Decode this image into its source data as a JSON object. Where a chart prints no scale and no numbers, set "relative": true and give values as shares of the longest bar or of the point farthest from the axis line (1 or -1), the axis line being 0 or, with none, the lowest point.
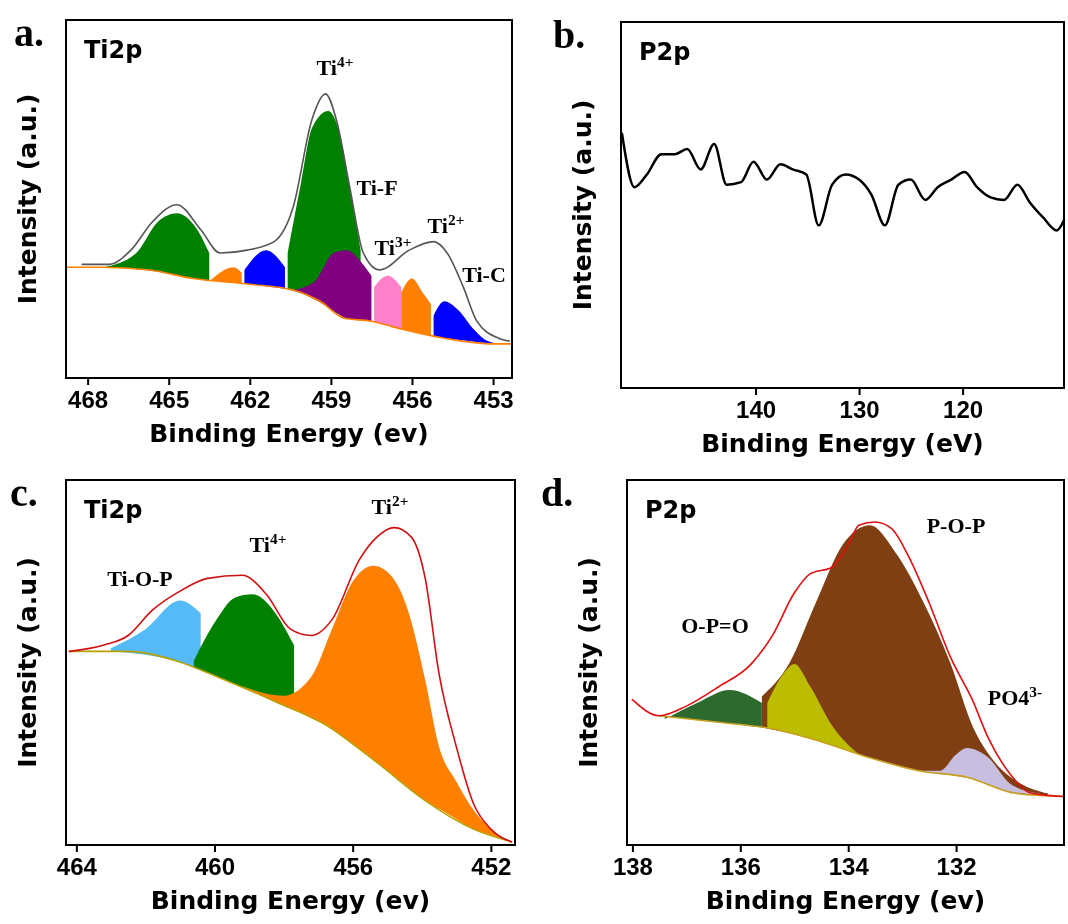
{
  "chart_data": [
    {
      "type": "area",
      "title": "a.",
      "subtitle": "Ti2p",
      "xlabel": "Binding Energy (ev)",
      "ylabel": "Intensity (a.u.)",
      "relative": true,
      "tick_labels": "x",
      "xlim": [
        468.8,
        452.3
      ],
      "xticks": [
        468,
        465,
        462,
        459,
        456,
        453
      ],
      "annotations": [
        "Ti$^{4+}$",
        "Ti-F",
        "Ti$^{3+}$",
        "Ti$^{2+}$",
        "Ti-C"
      ],
      "series": [
        {
          "color": "#008000",
          "x": [
            467.4,
            466.2,
            465.4,
            464.7,
            464.0,
            463.5
          ],
          "values": [
            0.39,
            0.44,
            0.55,
            0.58,
            0.53,
            0.44
          ]
        },
        {
          "color": "#ff8000",
          "x": [
            463.5,
            462.6,
            462.3
          ],
          "values": [
            0.34,
            0.39,
            0.37
          ]
        },
        {
          "color": "#008000",
          "x": [
            460.6,
            460.1,
            459.7,
            459.1,
            458.7,
            458.3,
            457.9
          ],
          "values": [
            0.44,
            0.69,
            0.88,
            0.94,
            0.87,
            0.67,
            0.45
          ]
        },
        {
          "color": "#0000ff",
          "x": [
            462.2,
            461.4,
            460.7
          ],
          "values": [
            0.38,
            0.45,
            0.39
          ]
        },
        {
          "color": "#800080",
          "x": [
            460.4,
            459.6,
            458.9,
            458.4,
            457.9,
            457.5
          ],
          "values": [
            0.31,
            0.34,
            0.44,
            0.45,
            0.41,
            0.36
          ]
        },
        {
          "color": "#ff80c8",
          "x": [
            457.4,
            456.9,
            456.4
          ],
          "values": [
            0.32,
            0.36,
            0.32
          ]
        },
        {
          "color": "#ff8000",
          "x": [
            456.4,
            456.0,
            455.6,
            455.3
          ],
          "values": [
            0.3,
            0.35,
            0.3,
            0.26
          ]
        },
        {
          "color": "#0000ff",
          "x": [
            455.2,
            454.8,
            454.3,
            453.7,
            453.2,
            452.7
          ],
          "values": [
            0.22,
            0.27,
            0.24,
            0.17,
            0.13,
            0.12
          ]
        },
        {
          "type": "line",
          "color": "#ff7f00",
          "x": [
            468.8,
            467.5,
            465.7,
            464.1,
            462.0,
            460.4,
            459.4,
            458.5,
            457.5,
            456.7,
            454.8,
            453.0,
            452.3
          ],
          "values": [
            0.39,
            0.39,
            0.38,
            0.35,
            0.33,
            0.31,
            0.27,
            0.21,
            0.2,
            0.18,
            0.14,
            0.12,
            0.12
          ]
        },
        {
          "type": "line",
          "color": "#555555",
          "x": [
            468.2,
            467.2,
            466.4,
            465.6,
            464.7,
            463.8,
            463.1,
            462.1,
            461.1,
            460.4,
            459.7,
            459.2,
            458.8,
            458.3,
            457.8,
            457.2,
            456.1,
            455.2,
            454.7,
            454.1,
            453.6,
            452.8,
            452.4
          ],
          "values": [
            0.4,
            0.4,
            0.45,
            0.55,
            0.61,
            0.52,
            0.44,
            0.45,
            0.48,
            0.6,
            0.91,
            1.0,
            0.91,
            0.67,
            0.44,
            0.38,
            0.45,
            0.48,
            0.44,
            0.32,
            0.2,
            0.14,
            0.13
          ]
        }
      ]
    },
    {
      "type": "line",
      "title": "b.",
      "subtitle": "P2p",
      "xlabel": "Binding Energy (eV)",
      "ylabel": "Intensity (a.u.)",
      "relative": true,
      "tick_labels": "x",
      "xlim": [
        153,
        110.2
      ],
      "xticks": [
        140,
        130,
        120
      ],
      "series": [
        {
          "color": "#000000",
          "x": [
            152.9,
            151.7,
            150.5,
            149.1,
            147.8,
            146.6,
            145.3,
            144.0,
            142.8,
            141.4,
            140.2,
            138.9,
            137.6,
            136.4,
            135.1,
            133.9,
            132.6,
            131.3,
            130.0,
            128.8,
            127.5,
            126.2,
            125.0,
            123.6,
            122.4,
            121.1,
            119.8,
            118.6,
            117.3,
            116.0,
            114.7,
            113.5,
            112.2,
            110.9,
            110.2
          ],
          "values": [
            1.0,
            0.79,
            0.84,
            0.92,
            0.92,
            0.94,
            0.86,
            0.96,
            0.8,
            0.81,
            0.89,
            0.82,
            0.88,
            0.86,
            0.84,
            0.64,
            0.8,
            0.84,
            0.82,
            0.76,
            0.64,
            0.8,
            0.82,
            0.74,
            0.79,
            0.82,
            0.85,
            0.79,
            0.75,
            0.74,
            0.8,
            0.73,
            0.67,
            0.62,
            0.66
          ]
        }
      ]
    },
    {
      "type": "area",
      "title": "c.",
      "subtitle": "Ti2p",
      "xlabel": "Binding Energy (ev)",
      "ylabel": "Intensity (a.u.)",
      "relative": true,
      "tick_labels": "x",
      "xlim": [
        464.3,
        451.3
      ],
      "xticks": [
        464,
        460,
        456,
        452
      ],
      "annotations": [
        "Ti-O-P",
        "Ti$^{4+}$",
        "Ti$^{2+}$"
      ],
      "series": [
        {
          "color": "#55bbf8",
          "x": [
            463.0,
            462.0,
            461.0,
            460.4
          ],
          "values": [
            0.62,
            0.68,
            0.77,
            0.73
          ]
        },
        {
          "color": "#008000",
          "x": [
            460.6,
            460.0,
            459.4,
            458.9,
            458.3,
            457.7
          ],
          "values": [
            0.58,
            0.7,
            0.78,
            0.79,
            0.74,
            0.63
          ]
        },
        {
          "color": "#ff8000",
          "x": [
            459.2,
            458.0,
            457.2,
            456.6,
            456.0,
            455.4,
            454.9,
            454.4,
            453.9,
            453.5,
            453.0,
            452.5,
            452.0,
            451.4
          ],
          "values": [
            0.5,
            0.47,
            0.53,
            0.68,
            0.83,
            0.88,
            0.85,
            0.74,
            0.52,
            0.31,
            0.2,
            0.11,
            0.05,
            0.01
          ]
        },
        {
          "type": "line",
          "color": "#b8a000",
          "x": [
            464.2,
            462.5,
            461.1,
            459.7,
            458.2,
            456.8,
            455.3,
            453.9,
            452.5,
            451.4
          ],
          "values": [
            0.61,
            0.61,
            0.58,
            0.52,
            0.45,
            0.38,
            0.26,
            0.14,
            0.05,
            0.01
          ]
        },
        {
          "type": "line",
          "color": "#d01010",
          "x": [
            464.2,
            463.2,
            462.5,
            461.8,
            461.0,
            460.2,
            459.2,
            458.5,
            457.8,
            457.2,
            456.6,
            455.8,
            455.3,
            454.8,
            454.3,
            453.9,
            453.5,
            453.0,
            452.5,
            452.0,
            451.4
          ],
          "values": [
            0.61,
            0.63,
            0.66,
            0.74,
            0.8,
            0.84,
            0.85,
            0.79,
            0.68,
            0.66,
            0.71,
            0.9,
            0.97,
            1.0,
            0.97,
            0.84,
            0.54,
            0.31,
            0.13,
            0.05,
            0.01
          ]
        }
      ]
    },
    {
      "type": "area",
      "title": "d.",
      "subtitle": "P2p",
      "xlabel": "Binding Energy (ev)",
      "ylabel": "Intensity (a.u.)",
      "relative": true,
      "tick_labels": "x",
      "xlim": [
        138.1,
        130
      ],
      "xticks": [
        138,
        136,
        134,
        132
      ],
      "annotations": [
        "O-P=O",
        "P-O-P",
        "PO4$^{3-}$"
      ],
      "series": [
        {
          "color": "#7f3f12",
          "x": [
            135.6,
            135.1,
            134.6,
            134.1,
            133.6,
            133.1,
            132.6,
            132.1,
            131.7,
            131.3,
            130.8,
            130.3
          ],
          "values": [
            0.46,
            0.56,
            0.75,
            0.93,
            0.99,
            0.9,
            0.75,
            0.56,
            0.37,
            0.26,
            0.19,
            0.16
          ]
        },
        {
          "color": "#2d6a2d",
          "x": [
            137.4,
            136.8,
            136.2,
            135.6
          ],
          "values": [
            0.39,
            0.44,
            0.48,
            0.44
          ]
        },
        {
          "color": "#bcbc00",
          "x": [
            135.5,
            135.2,
            135.0,
            134.7,
            134.3,
            133.8
          ],
          "values": [
            0.44,
            0.53,
            0.56,
            0.49,
            0.37,
            0.28
          ]
        },
        {
          "color": "#c8bfe0",
          "x": [
            132.7,
            132.3,
            132.0,
            131.8,
            131.4,
            131.0,
            130.5,
            130.1
          ],
          "values": [
            0.23,
            0.23,
            0.28,
            0.3,
            0.27,
            0.19,
            0.16,
            0.15
          ]
        },
        {
          "type": "line",
          "color": "#c8a020",
          "x": [
            137.5,
            136.4,
            135.4,
            134.5,
            133.6,
            132.7,
            131.8,
            130.9,
            130.0
          ],
          "values": [
            0.4,
            0.38,
            0.36,
            0.32,
            0.27,
            0.23,
            0.21,
            0.16,
            0.15
          ]
        },
        {
          "type": "line",
          "color": "#e01010",
          "x": [
            138.0,
            137.5,
            137.0,
            136.4,
            135.8,
            135.4,
            135.0,
            134.7,
            134.3,
            134.0,
            133.8,
            133.5,
            133.2,
            132.9,
            132.5,
            132.1,
            131.7,
            131.4,
            131.0,
            130.6,
            130.0
          ],
          "values": [
            0.45,
            0.4,
            0.43,
            0.49,
            0.56,
            0.65,
            0.78,
            0.84,
            0.86,
            0.93,
            0.99,
            1.0,
            0.98,
            0.9,
            0.75,
            0.58,
            0.45,
            0.33,
            0.22,
            0.16,
            0.15
          ]
        }
      ]
    }
  ]
}
